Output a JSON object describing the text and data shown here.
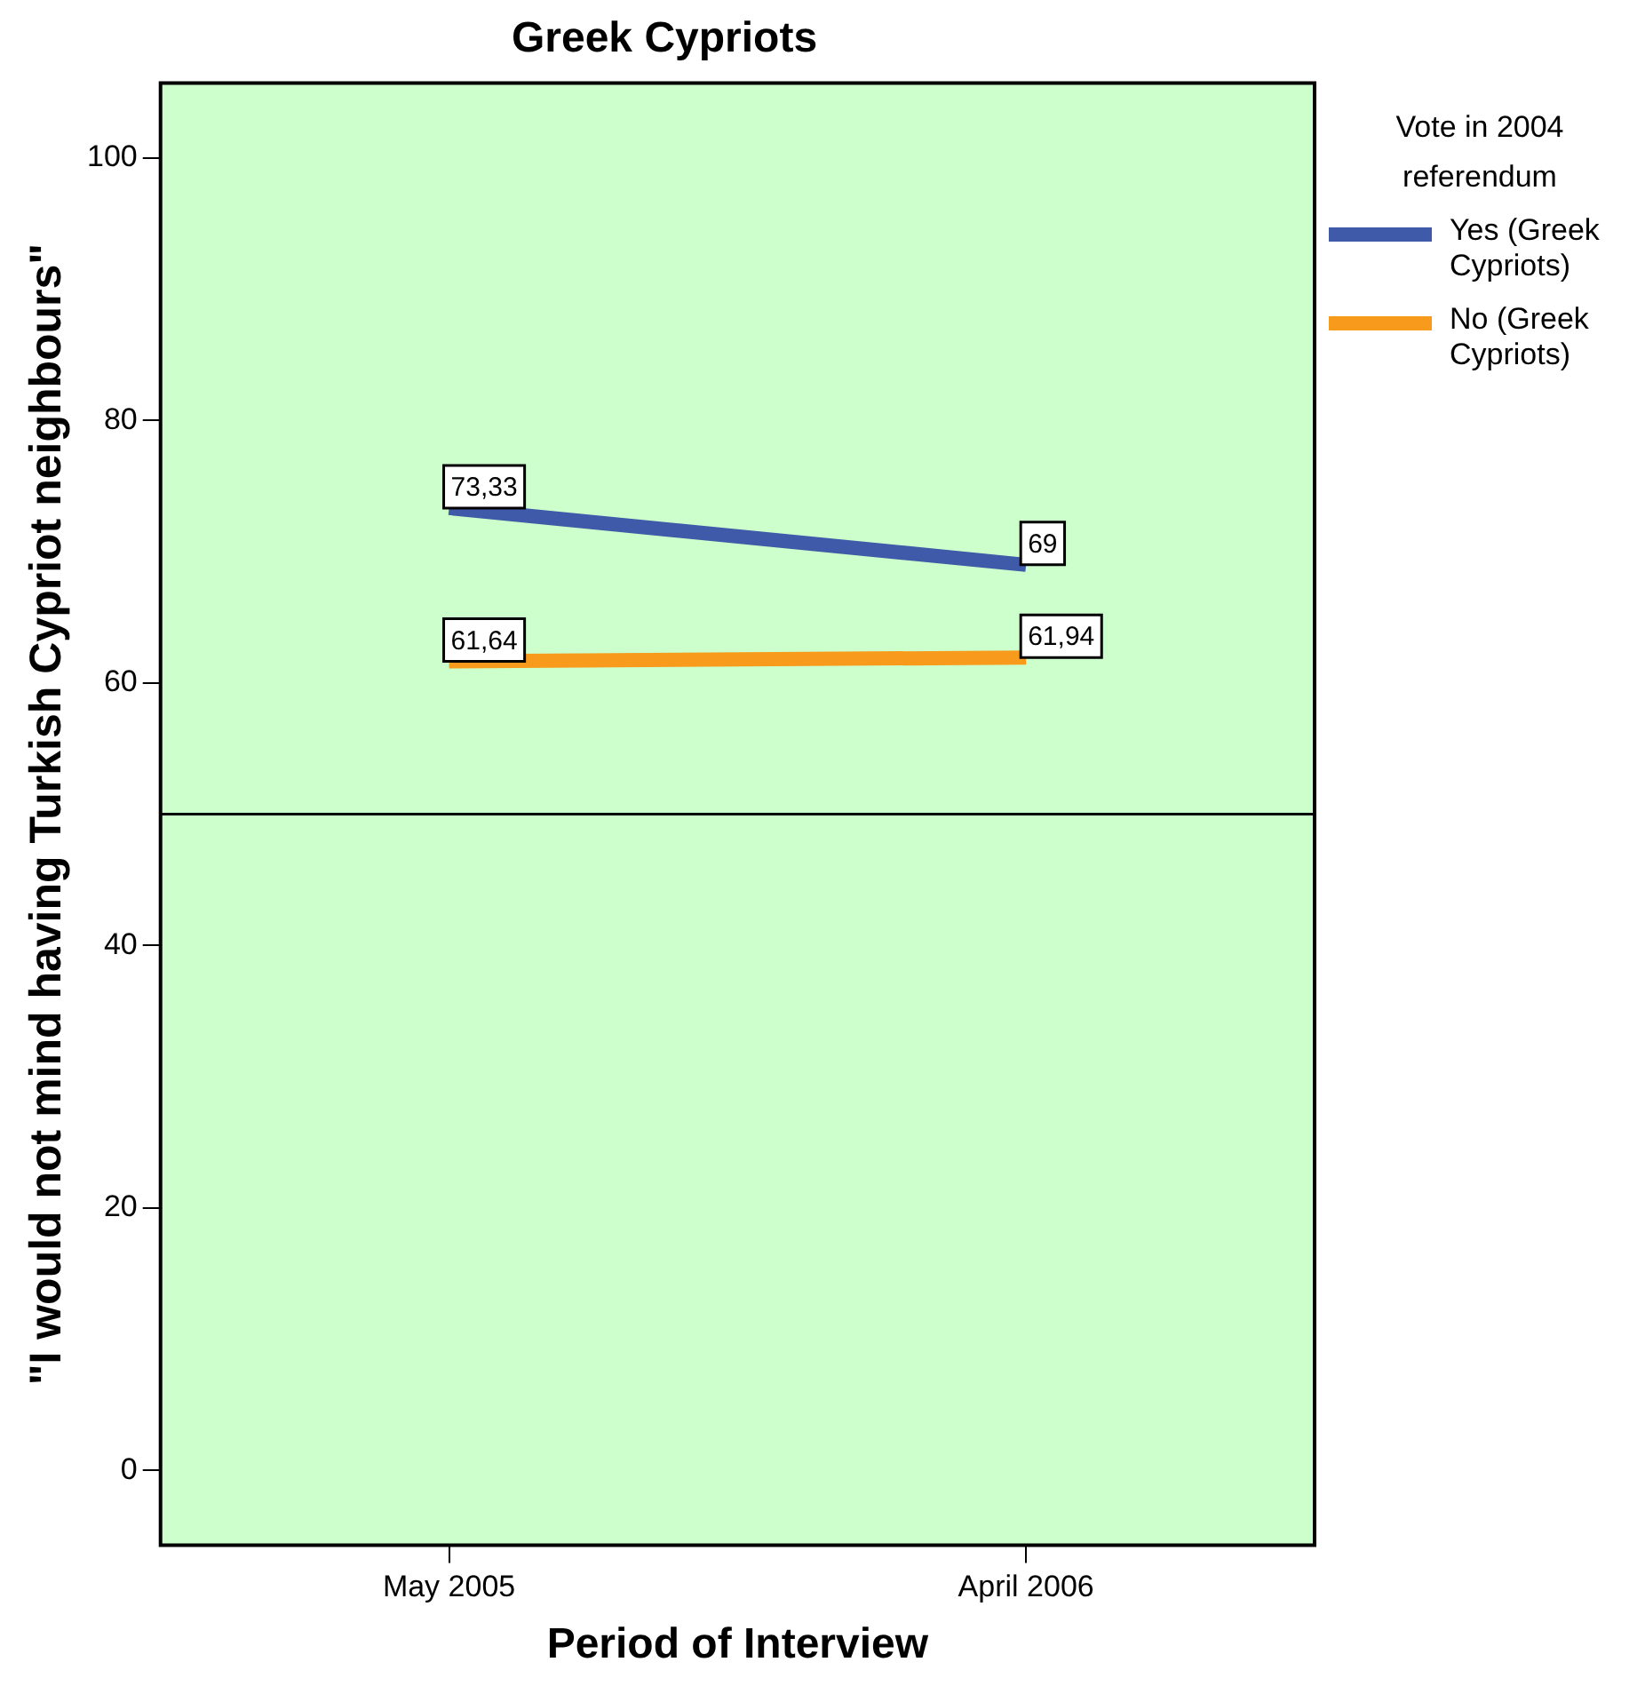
{
  "chart_data": {
    "type": "line",
    "title": "Greek Cypriots",
    "xlabel": "Period of Interview",
    "ylabel": "\"I would not mind having Turkish Cypriot neighbours\"",
    "legend_title": "Vote in 2004 referendum",
    "categories": [
      "May 2005",
      "April 2006"
    ],
    "series": [
      {
        "name": "Yes (Greek Cypriots)",
        "color": "#3f5aa8",
        "values": [
          73.33,
          69
        ],
        "value_labels": [
          "73,33",
          "69"
        ]
      },
      {
        "name": "No (Greek Cypriots)",
        "color": "#f89a1c",
        "values": [
          61.64,
          61.94
        ],
        "value_labels": [
          "61,64",
          "61,94"
        ]
      }
    ],
    "ylim": [
      -5.7,
      105.7
    ],
    "yticks": [
      0,
      20,
      40,
      60,
      80,
      100
    ],
    "ref_lines": [
      {
        "axis": "y",
        "value": 50,
        "color": "#000000"
      }
    ],
    "grid": false,
    "legend": "right",
    "marker": "none",
    "line_style": "solid"
  }
}
